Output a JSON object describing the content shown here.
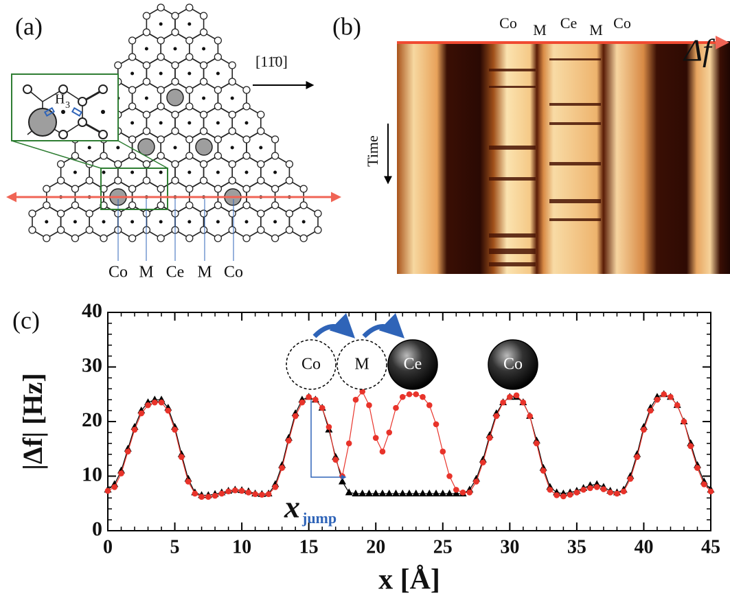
{
  "panel_a": {
    "label": "(a)",
    "direction": "[11̄0]",
    "inset_label": {
      "text": "H",
      "subscript": "3"
    },
    "sites": [
      "Co",
      "M",
      "Ce",
      "M",
      "Co"
    ]
  },
  "panel_b": {
    "label": "(b)",
    "sites": [
      "Co",
      "M",
      "Ce",
      "M",
      "Co"
    ],
    "signal": "Δf",
    "time_axis": "Time"
  },
  "chart_data": {
    "type": "line",
    "panel_label": "(c)",
    "x_label": "x [Å]",
    "y_label": "|Δf| [Hz]",
    "x": [
      0,
      0.5,
      1,
      1.5,
      2,
      2.5,
      3,
      3.5,
      4,
      4.5,
      5,
      5.5,
      6,
      6.5,
      7,
      7.5,
      8,
      8.5,
      9,
      9.5,
      10,
      10.5,
      11,
      11.5,
      12,
      12.5,
      13,
      13.5,
      14,
      14.5,
      15,
      15.5,
      16,
      16.5,
      17,
      17.5,
      18,
      18.5,
      19,
      19.5,
      20,
      20.5,
      21,
      21.5,
      22,
      22.5,
      23,
      23.5,
      24,
      24.5,
      25,
      25.5,
      26,
      26.5,
      27,
      27.5,
      28,
      28.5,
      29,
      29.5,
      30,
      30.5,
      31,
      31.5,
      32,
      32.5,
      33,
      33.5,
      34,
      34.5,
      35,
      35.5,
      36,
      36.5,
      37,
      37.5,
      38,
      38.5,
      39,
      39.5,
      40,
      40.5,
      41,
      41.5,
      42,
      42.5,
      43,
      43.5,
      44,
      44.5,
      45
    ],
    "series": [
      {
        "color": "#000000",
        "marker": "triangle",
        "values": [
          7.5,
          8.5,
          11,
          15,
          19,
          22,
          23.5,
          24,
          24,
          22.5,
          19,
          14,
          9.5,
          7,
          6.5,
          6.5,
          6.7,
          7,
          7.3,
          7.5,
          7.4,
          7.2,
          6.8,
          6.7,
          6.8,
          8.5,
          12,
          17,
          21.5,
          24,
          24.5,
          24,
          22.5,
          18.5,
          13.5,
          9,
          7,
          6.8,
          6.8,
          6.8,
          6.8,
          6.8,
          6.8,
          6.8,
          6.8,
          6.8,
          6.8,
          6.8,
          6.8,
          6.8,
          6.8,
          6.8,
          6.8,
          6.8,
          7.5,
          9.5,
          13,
          17.5,
          21.5,
          23.5,
          24.5,
          24.5,
          23.5,
          21,
          16.5,
          11.5,
          8,
          7,
          6.8,
          7,
          7.3,
          7.8,
          8.3,
          8.5,
          8,
          7.3,
          7,
          7.5,
          10,
          14,
          19,
          22.5,
          24.5,
          25,
          24.5,
          23,
          20,
          16,
          12,
          9,
          7.5
        ]
      },
      {
        "color": "#e8332a",
        "marker": "circle",
        "values": [
          7.3,
          8,
          10.5,
          14.5,
          18.5,
          21.5,
          23,
          23.5,
          23.5,
          22,
          18.5,
          13.5,
          9,
          6.8,
          6.2,
          6.2,
          6.4,
          6.8,
          7.2,
          7.4,
          7.3,
          7,
          6.7,
          6.6,
          6.7,
          8,
          11.5,
          16.5,
          21,
          23.5,
          24.5,
          24,
          22.5,
          19,
          13,
          10,
          16,
          24,
          25.5,
          23,
          17,
          14.5,
          18,
          22.5,
          24.5,
          25,
          25,
          24.5,
          23,
          19.5,
          14.5,
          10,
          7.5,
          7,
          7,
          9,
          12.5,
          17,
          21,
          23.5,
          24.5,
          24.8,
          23.5,
          21,
          16,
          11,
          7.5,
          6.5,
          6.3,
          6.6,
          7,
          7.5,
          7.8,
          8,
          7.6,
          7,
          6.8,
          7.2,
          9.5,
          13.5,
          18.5,
          22,
          24,
          25,
          24.5,
          23,
          20,
          15.5,
          11.5,
          8.5,
          7.2
        ]
      }
    ],
    "xlim": [
      0,
      45
    ],
    "ylim": [
      0,
      40
    ],
    "xticks": [
      0,
      5,
      10,
      15,
      20,
      25,
      30,
      35,
      40,
      45
    ],
    "yticks": [
      0,
      10,
      20,
      30,
      40
    ],
    "annotations": {
      "atoms": [
        "Co",
        "M",
        "Ce",
        "Co"
      ],
      "jump_symbol": "x",
      "jump_subscript": "jump"
    }
  }
}
